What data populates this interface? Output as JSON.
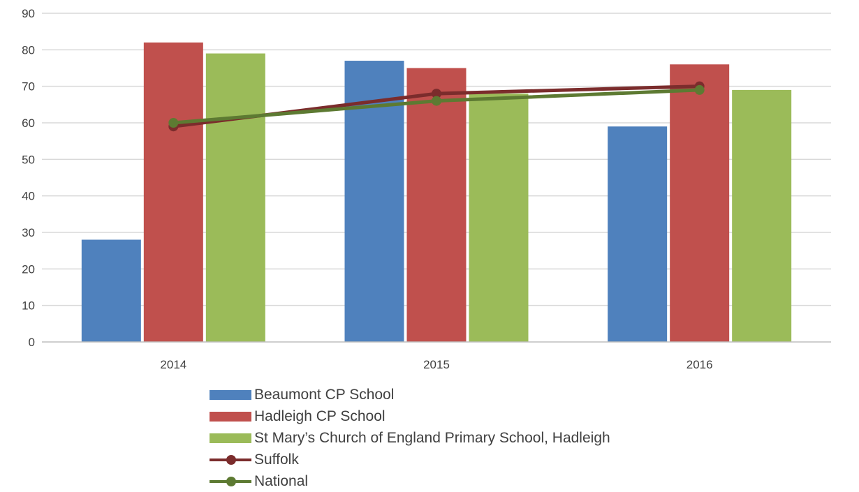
{
  "chart_data": {
    "type": "bar",
    "title": "",
    "xlabel": "",
    "ylabel": "",
    "categories": [
      "2014",
      "2015",
      "2016"
    ],
    "ylim": [
      0,
      90
    ],
    "yticks": [
      "0",
      "10",
      "20",
      "30",
      "40",
      "50",
      "60",
      "70",
      "80",
      "90"
    ],
    "grid": true,
    "legend_position": "bottom",
    "series": [
      {
        "name": "Beaumont CP School",
        "kind": "bar",
        "color": "#4f81bd",
        "values": [
          28,
          77,
          59
        ]
      },
      {
        "name": "Hadleigh CP School",
        "kind": "bar",
        "color": "#c0504d",
        "values": [
          82,
          75,
          76
        ]
      },
      {
        "name": "St Mary’s Church of England Primary School, Hadleigh",
        "kind": "bar",
        "color": "#9bbb59",
        "values": [
          79,
          68,
          69
        ]
      },
      {
        "name": "Suffolk",
        "kind": "line",
        "color": "#7b2c2c",
        "values": [
          59,
          68,
          70
        ]
      },
      {
        "name": "National",
        "kind": "line",
        "color": "#5d7a32",
        "values": [
          60,
          66,
          69
        ]
      }
    ]
  }
}
